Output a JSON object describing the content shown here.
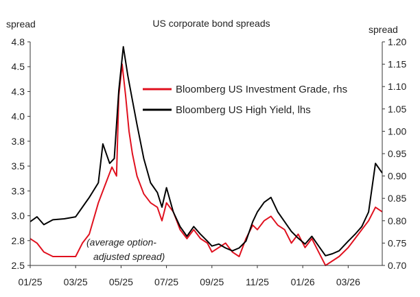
{
  "chart_data": {
    "type": "line",
    "title": "US corporate bond spreads",
    "left_axis": {
      "label": "spread",
      "range": [
        2.5,
        4.8
      ],
      "ticks": [
        "4.8",
        "4.5",
        "4.3",
        "4.0",
        "3.8",
        "3.5",
        "3.3",
        "3.0",
        "2.8",
        "2.5"
      ]
    },
    "right_axis": {
      "label": "spread",
      "range": [
        0.7,
        1.2
      ],
      "ticks": [
        "1.20",
        "1.15",
        "1.10",
        "1.05",
        "1.00",
        "0.95",
        "0.90",
        "0.85",
        "0.80",
        "0.75",
        "0.70"
      ]
    },
    "x_axis": {
      "ticks": [
        "01/25",
        "03/25",
        "05/25",
        "07/25",
        "09/25",
        "11/25",
        "01/26",
        "03/26"
      ],
      "range_months": [
        0,
        15.5
      ]
    },
    "annotation": [
      "(average option-",
      "adjusted spread)"
    ],
    "legend_position": "top-right",
    "grid": false,
    "series": [
      {
        "name": "Bloomberg US Investment Grade, rhs",
        "axis": "right",
        "color": "#e0101e",
        "x": [
          0,
          0.3,
          0.6,
          1.0,
          1.5,
          2.0,
          2.3,
          2.6,
          3.0,
          3.3,
          3.6,
          3.8,
          3.9,
          4.05,
          4.2,
          4.35,
          4.5,
          4.7,
          5.0,
          5.3,
          5.6,
          5.8,
          6.0,
          6.3,
          6.6,
          6.9,
          7.2,
          7.5,
          7.8,
          8.0,
          8.3,
          8.6,
          8.9,
          9.2,
          9.5,
          9.8,
          10.0,
          10.3,
          10.6,
          10.9,
          11.2,
          11.5,
          11.8,
          12.1,
          12.4,
          12.7,
          13.0,
          13.3,
          13.6,
          14.0,
          14.3,
          14.6,
          14.9,
          15.2,
          15.5
        ],
        "values": [
          0.76,
          0.75,
          0.73,
          0.72,
          0.72,
          0.72,
          0.75,
          0.77,
          0.84,
          0.88,
          0.92,
          0.9,
          1.08,
          1.15,
          1.08,
          1.0,
          0.95,
          0.9,
          0.86,
          0.84,
          0.83,
          0.8,
          0.84,
          0.82,
          0.78,
          0.76,
          0.78,
          0.76,
          0.75,
          0.73,
          0.74,
          0.75,
          0.73,
          0.72,
          0.76,
          0.79,
          0.78,
          0.8,
          0.81,
          0.79,
          0.78,
          0.75,
          0.77,
          0.74,
          0.76,
          0.73,
          0.7,
          0.71,
          0.72,
          0.74,
          0.76,
          0.78,
          0.8,
          0.83,
          0.82
        ]
      },
      {
        "name": "Bloomberg US High Yield, lhs",
        "axis": "left",
        "color": "#000000",
        "x": [
          0,
          0.3,
          0.6,
          1.0,
          1.5,
          2.0,
          2.3,
          2.6,
          3.0,
          3.2,
          3.5,
          3.7,
          3.9,
          4.1,
          4.3,
          4.5,
          4.7,
          5.0,
          5.3,
          5.6,
          5.8,
          6.0,
          6.3,
          6.6,
          6.9,
          7.2,
          7.5,
          7.8,
          8.0,
          8.3,
          8.6,
          8.9,
          9.2,
          9.5,
          9.8,
          10.0,
          10.3,
          10.6,
          10.9,
          11.2,
          11.5,
          11.8,
          12.1,
          12.4,
          12.7,
          13.0,
          13.3,
          13.6,
          14.0,
          14.3,
          14.6,
          14.9,
          15.2,
          15.5
        ],
        "values": [
          2.95,
          3.0,
          2.92,
          2.97,
          2.98,
          3.0,
          3.1,
          3.2,
          3.35,
          3.75,
          3.55,
          3.6,
          4.3,
          4.75,
          4.45,
          4.2,
          3.95,
          3.6,
          3.35,
          3.25,
          3.1,
          3.3,
          3.05,
          2.9,
          2.8,
          2.9,
          2.82,
          2.75,
          2.7,
          2.72,
          2.68,
          2.65,
          2.68,
          2.75,
          2.95,
          3.05,
          3.15,
          3.2,
          3.05,
          2.95,
          2.85,
          2.78,
          2.72,
          2.8,
          2.7,
          2.6,
          2.62,
          2.65,
          2.75,
          2.82,
          2.9,
          3.05,
          3.55,
          3.45
        ]
      }
    ]
  }
}
